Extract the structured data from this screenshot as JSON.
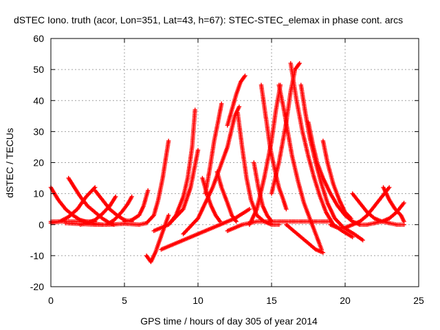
{
  "chart_data": {
    "type": "scatter",
    "title": "dSTEC Iono. truth (acor, Lon=351, Lat=43, h=67): STEC-STEC_elemax in phase cont. arcs",
    "xlabel": "GPS time / hours of day 305 of year 2014",
    "ylabel": "dSTEC  / TECUs",
    "xlim": [
      0,
      25
    ],
    "ylim": [
      -20,
      60
    ],
    "xticks": [
      0,
      5,
      10,
      15,
      20,
      25
    ],
    "yticks": [
      -20,
      -10,
      0,
      10,
      20,
      30,
      40,
      50,
      60
    ],
    "xtick_labels": [
      "0",
      "5",
      "10",
      "15",
      "20",
      "25"
    ],
    "ytick_labels": [
      "-20",
      "-10",
      "0",
      "10",
      "20",
      "30",
      "40",
      "50",
      "60"
    ],
    "grid": true,
    "legend": "none",
    "marker": "plus",
    "colors": {
      "series": "#ff0000",
      "grid": "#a0a0a0",
      "axis": "#000000"
    },
    "series": [
      {
        "x": [
          0.0,
          0.5,
          1.0,
          1.5,
          2.0,
          2.5,
          3.0,
          3.5
        ],
        "y": [
          12,
          8,
          5,
          3,
          1.5,
          0.8,
          0.3,
          0
        ]
      },
      {
        "x": [
          0.0,
          1.0,
          2.0,
          3.0
        ],
        "y": [
          1,
          1,
          1,
          1
        ]
      },
      {
        "x": [
          0.0,
          0.6,
          1.2,
          1.8,
          2.4,
          3.0
        ],
        "y": [
          0.5,
          1,
          2.5,
          5,
          9,
          12
        ]
      },
      {
        "x": [
          1.2,
          1.6,
          2.0,
          2.5,
          3.0,
          3.5,
          4.0,
          4.3
        ],
        "y": [
          15,
          12,
          9,
          6,
          4,
          2,
          0.5,
          0
        ]
      },
      {
        "x": [
          3.0,
          3.5,
          4.0,
          4.5,
          5.0,
          5.5
        ],
        "y": [
          11,
          8,
          5,
          3,
          1.5,
          1
        ]
      },
      {
        "x": [
          2.0,
          2.5,
          3.0,
          3.5,
          4.0,
          4.4
        ],
        "y": [
          0,
          0.5,
          1.5,
          3.5,
          6,
          9
        ]
      },
      {
        "x": [
          3.8,
          4.3,
          4.8,
          5.2,
          5.5
        ],
        "y": [
          0,
          1.5,
          4,
          6.5,
          9
        ]
      },
      {
        "x": [
          5.0,
          5.5,
          6.0,
          6.3,
          6.6
        ],
        "y": [
          1,
          1.5,
          3,
          6,
          11
        ]
      },
      {
        "x": [
          1.0,
          2.0,
          3.0,
          4.0,
          5.0,
          6.0
        ],
        "y": [
          0.5,
          0.2,
          0,
          0,
          0.3,
          0
        ]
      },
      {
        "x": [
          6.5,
          6.8,
          7.1,
          7.4,
          7.7,
          8.0
        ],
        "y": [
          -10,
          -12,
          -9,
          -5,
          -1,
          3
        ]
      },
      {
        "x": [
          6.0,
          6.5,
          7.0,
          7.3,
          7.6,
          7.8,
          8.0
        ],
        "y": [
          0,
          0.5,
          3,
          8,
          15,
          21,
          27
        ]
      },
      {
        "x": [
          7.5,
          8.5,
          9.5,
          10.5,
          11.5,
          12.5,
          13.5
        ],
        "y": [
          -8,
          -6,
          -4,
          -2,
          0,
          2,
          5
        ]
      },
      {
        "x": [
          7.0,
          8.0,
          9.0,
          9.5,
          10.0
        ],
        "y": [
          -2,
          0,
          5,
          12,
          24
        ]
      },
      {
        "x": [
          8.0,
          8.5,
          9.0,
          9.3,
          9.6,
          9.8
        ],
        "y": [
          0,
          3,
          9,
          15,
          25,
          37
        ]
      },
      {
        "x": [
          10.3,
          10.6,
          10.9,
          11.2,
          11.5
        ],
        "y": [
          15,
          10,
          6,
          3,
          1
        ]
      },
      {
        "x": [
          10.5,
          10.8,
          11.1,
          11.4,
          11.6
        ],
        "y": [
          10,
          18,
          27,
          34,
          39
        ]
      },
      {
        "x": [
          9.0,
          10.0,
          11.0,
          12.0,
          12.5,
          12.8
        ],
        "y": [
          -3,
          2,
          12,
          25,
          35,
          38
        ]
      },
      {
        "x": [
          11.3,
          11.6,
          12.0,
          12.3,
          12.6
        ],
        "y": [
          17,
          12,
          7,
          3,
          1
        ]
      },
      {
        "x": [
          12.0,
          12.3,
          12.6,
          12.9,
          13.2
        ],
        "y": [
          32,
          37,
          42,
          46,
          48
        ]
      },
      {
        "x": [
          12.7,
          13.0,
          13.3,
          13.6,
          14.0,
          14.5,
          15.0,
          15.5
        ],
        "y": [
          36,
          25,
          15,
          8,
          3,
          1,
          0,
          0
        ]
      },
      {
        "x": [
          13.8,
          14.1,
          14.4,
          14.7,
          15.0
        ],
        "y": [
          20,
          12,
          6,
          3,
          1
        ]
      },
      {
        "x": [
          14.3,
          14.6,
          14.9,
          15.2,
          15.5,
          15.8,
          16.0
        ],
        "y": [
          45,
          35,
          25,
          18,
          12,
          8,
          5
        ]
      },
      {
        "x": [
          13.5,
          14.0,
          14.5,
          15.0,
          15.3,
          15.6
        ],
        "y": [
          0,
          5,
          15,
          27,
          37,
          45
        ]
      },
      {
        "x": [
          15.5,
          15.8,
          16.1,
          16.4,
          16.8,
          17.2,
          17.6,
          18.0,
          18.4
        ],
        "y": [
          45,
          38,
          30,
          22,
          14,
          7,
          2,
          -3,
          -8
        ]
      },
      {
        "x": [
          15.0,
          15.5,
          16.0,
          16.3,
          16.6,
          16.9
        ],
        "y": [
          10,
          20,
          33,
          43,
          50,
          52
        ]
      },
      {
        "x": [
          16.3,
          16.7,
          17.1,
          17.5,
          17.9,
          18.3,
          18.7,
          19.2,
          19.8,
          20.5
        ],
        "y": [
          52,
          40,
          30,
          22,
          15,
          9,
          4,
          0,
          -2,
          -4
        ]
      },
      {
        "x": [
          17.0,
          17.3,
          17.6,
          18.0,
          18.4,
          18.8,
          19.3,
          19.9,
          20.6,
          21.2
        ],
        "y": [
          45,
          36,
          28,
          20,
          13,
          7,
          2,
          -1,
          -3,
          -5
        ]
      },
      {
        "x": [
          17.5,
          17.8,
          18.1,
          18.5,
          19.0,
          19.5,
          20.0,
          20.5,
          21.0
        ],
        "y": [
          33,
          26,
          20,
          15,
          10,
          6,
          3,
          1,
          0
        ]
      },
      {
        "x": [
          18.5,
          18.8,
          19.2,
          19.6,
          20.0,
          20.4
        ],
        "y": [
          27,
          20,
          13,
          8,
          4,
          2
        ]
      },
      {
        "x": [
          19.0,
          19.5,
          20.0,
          20.5,
          21.0,
          21.5,
          22.0,
          22.5,
          23.0
        ],
        "y": [
          0,
          -1,
          -1,
          0,
          1,
          3,
          6,
          9,
          12
        ]
      },
      {
        "x": [
          20.5,
          21.0,
          21.5,
          22.0,
          22.5,
          23.0,
          23.5,
          24.0
        ],
        "y": [
          10,
          7,
          4,
          2,
          1,
          0.5,
          0,
          0
        ]
      },
      {
        "x": [
          22.6,
          23.0,
          23.4,
          23.8,
          24.0
        ],
        "y": [
          12,
          8,
          5,
          3,
          1
        ]
      },
      {
        "x": [
          21.0,
          21.5,
          22.0,
          22.5,
          23.0,
          23.5,
          24.0
        ],
        "y": [
          0,
          0,
          0.5,
          1,
          2,
          4,
          7
        ]
      },
      {
        "x": [
          12.0,
          13.0,
          14.0,
          15.0,
          16.0,
          17.0,
          18.0,
          19.0
        ],
        "y": [
          -2,
          0,
          1,
          1,
          1,
          1,
          1,
          1
        ]
      },
      {
        "x": [
          16.0,
          16.5,
          17.0,
          17.5,
          18.0,
          18.5
        ],
        "y": [
          0,
          -2,
          -4,
          -6,
          -8,
          -9
        ]
      }
    ]
  }
}
